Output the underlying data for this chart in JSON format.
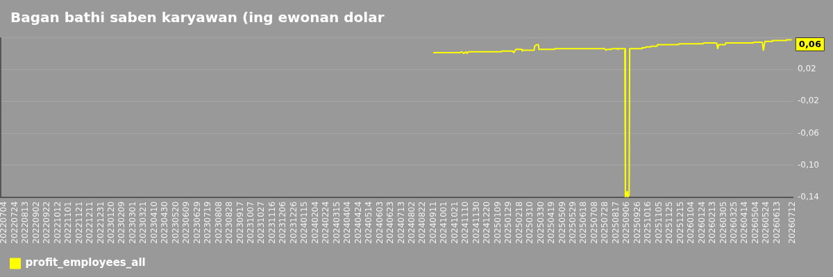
{
  "chart_data": {
    "type": "line",
    "title": "Bagan bathi saben karyawan (ing ewonan dolar",
    "x": [
      "2024-09-11",
      "2024-10-30",
      "2024-11-02",
      "2024-11-06",
      "2024-11-10",
      "2024-11-12",
      "2024-11-15",
      "2025-01-15",
      "2025-01-16",
      "2025-02-05",
      "2025-02-07",
      "2025-02-11",
      "2025-02-22",
      "2025-02-23",
      "2025-02-24",
      "2025-03-17",
      "2025-03-18",
      "2025-03-22",
      "2025-03-25",
      "2025-03-26",
      "2025-04-24",
      "2025-04-25",
      "2025-07-26",
      "2025-07-29",
      "2025-07-31",
      "2025-08-08",
      "2025-08-09",
      "2025-08-19",
      "2025-08-20",
      "2025-08-21",
      "2025-09-02",
      "2025-09-03",
      "2025-09-06",
      "2025-09-07",
      "2025-09-10",
      "2025-09-11",
      "2025-10-03",
      "2025-10-04",
      "2025-10-10",
      "2025-10-11",
      "2025-10-20",
      "2025-10-21",
      "2025-11-01",
      "2025-11-02",
      "2025-12-11",
      "2025-12-12",
      "2026-01-25",
      "2026-01-27",
      "2026-02-20",
      "2026-02-22",
      "2026-02-24",
      "2026-03-08",
      "2026-03-09",
      "2026-04-29",
      "2026-04-30",
      "2026-05-16",
      "2026-05-18",
      "2026-05-21",
      "2026-06-03",
      "2026-06-04",
      "2026-06-29",
      "2026-06-30",
      "2026-07-09"
    ],
    "series": [
      {
        "name": "profit_employees_all",
        "color": "#ffff00",
        "values": [
          0.041,
          0.041,
          0.042,
          0.04,
          0.042,
          0.04,
          0.042,
          0.042,
          0.043,
          0.043,
          0.041,
          0.045,
          0.045,
          0.043,
          0.044,
          0.044,
          0.049,
          0.051,
          0.051,
          0.045,
          0.045,
          0.046,
          0.046,
          0.044,
          0.045,
          0.045,
          0.046,
          0.046,
          0.045,
          0.046,
          0.046,
          -0.14,
          -0.133,
          -0.14,
          -0.137,
          0.046,
          0.046,
          0.047,
          0.047,
          0.048,
          0.048,
          0.049,
          0.049,
          0.051,
          0.051,
          0.052,
          0.052,
          0.053,
          0.053,
          0.046,
          0.051,
          0.051,
          0.053,
          0.053,
          0.054,
          0.054,
          0.044,
          0.055,
          0.055,
          0.056,
          0.056,
          0.057,
          0.057
        ],
        "value_labels": [
          null,
          null,
          null,
          null,
          null,
          null,
          null,
          null,
          null,
          null,
          null,
          null,
          null,
          null,
          null,
          null,
          null,
          null,
          null,
          null,
          null,
          null,
          null,
          null,
          null,
          null,
          null,
          null,
          null,
          null,
          null,
          null,
          null,
          null,
          null,
          null,
          null,
          null,
          null,
          null,
          null,
          null,
          null,
          null,
          null,
          null,
          null,
          null,
          null,
          null,
          null,
          null,
          null,
          null,
          null,
          null,
          null,
          null,
          null,
          null,
          null,
          null,
          "0,06"
        ]
      }
    ],
    "xlim": [
      "2022-06-26",
      "2026-07-13"
    ],
    "xticks": [
      {
        "value": "2022-07-04",
        "label": "20220704"
      },
      {
        "value": "2022-07-24",
        "label": "20220724"
      },
      {
        "value": "2022-08-13",
        "label": "20220813"
      },
      {
        "value": "2022-09-02",
        "label": "20220902"
      },
      {
        "value": "2022-09-22",
        "label": "20220922"
      },
      {
        "value": "2022-10-12",
        "label": "20221012"
      },
      {
        "value": "2022-11-01",
        "label": "20221101"
      },
      {
        "value": "2022-11-21",
        "label": "20221121"
      },
      {
        "value": "2022-12-11",
        "label": "20221211"
      },
      {
        "value": "2022-12-31",
        "label": "20221231"
      },
      {
        "value": "2023-01-20",
        "label": "20230120"
      },
      {
        "value": "2023-02-09",
        "label": "20230209"
      },
      {
        "value": "2023-03-01",
        "label": "20230301"
      },
      {
        "value": "2023-03-21",
        "label": "20230321"
      },
      {
        "value": "2023-04-10",
        "label": "20230410"
      },
      {
        "value": "2023-04-30",
        "label": "20230430"
      },
      {
        "value": "2023-05-20",
        "label": "20230520"
      },
      {
        "value": "2023-06-09",
        "label": "20230609"
      },
      {
        "value": "2023-06-29",
        "label": "20230629"
      },
      {
        "value": "2023-07-19",
        "label": "20230719"
      },
      {
        "value": "2023-08-08",
        "label": "20230808"
      },
      {
        "value": "2023-08-28",
        "label": "20230828"
      },
      {
        "value": "2023-09-17",
        "label": "20230917"
      },
      {
        "value": "2023-10-07",
        "label": "20231007"
      },
      {
        "value": "2023-10-27",
        "label": "20231027"
      },
      {
        "value": "2023-11-16",
        "label": "20231116"
      },
      {
        "value": "2023-12-06",
        "label": "20231206"
      },
      {
        "value": "2023-12-26",
        "label": "20231226"
      },
      {
        "value": "2024-01-15",
        "label": "20240115"
      },
      {
        "value": "2024-02-04",
        "label": "20240204"
      },
      {
        "value": "2024-02-24",
        "label": "20240224"
      },
      {
        "value": "2024-03-15",
        "label": "20240315"
      },
      {
        "value": "2024-04-04",
        "label": "20240404"
      },
      {
        "value": "2024-04-24",
        "label": "20240424"
      },
      {
        "value": "2024-05-14",
        "label": "20240514"
      },
      {
        "value": "2024-06-03",
        "label": "20240603"
      },
      {
        "value": "2024-06-23",
        "label": "20240623"
      },
      {
        "value": "2024-07-13",
        "label": "20240713"
      },
      {
        "value": "2024-08-02",
        "label": "20240802"
      },
      {
        "value": "2024-08-22",
        "label": "20240822"
      },
      {
        "value": "2024-09-11",
        "label": "20240911"
      },
      {
        "value": "2024-10-01",
        "label": "20241001"
      },
      {
        "value": "2024-10-21",
        "label": "20241021"
      },
      {
        "value": "2024-11-10",
        "label": "20241110"
      },
      {
        "value": "2024-11-30",
        "label": "20241130"
      },
      {
        "value": "2024-12-20",
        "label": "20241220"
      },
      {
        "value": "2025-01-09",
        "label": "20250109"
      },
      {
        "value": "2025-01-29",
        "label": "20250129"
      },
      {
        "value": "2025-02-18",
        "label": "20250218"
      },
      {
        "value": "2025-03-10",
        "label": "20250310"
      },
      {
        "value": "2025-03-30",
        "label": "20250330"
      },
      {
        "value": "2025-04-19",
        "label": "20250419"
      },
      {
        "value": "2025-05-09",
        "label": "20250509"
      },
      {
        "value": "2025-05-29",
        "label": "20250529"
      },
      {
        "value": "2025-06-18",
        "label": "20250618"
      },
      {
        "value": "2025-07-08",
        "label": "20250708"
      },
      {
        "value": "2025-07-28",
        "label": "20250728"
      },
      {
        "value": "2025-08-17",
        "label": "20250817"
      },
      {
        "value": "2025-09-06",
        "label": "20250906"
      },
      {
        "value": "2025-09-26",
        "label": "20250926"
      },
      {
        "value": "2025-10-16",
        "label": "20251016"
      },
      {
        "value": "2025-11-05",
        "label": "20251105"
      },
      {
        "value": "2025-11-25",
        "label": "20251125"
      },
      {
        "value": "2025-12-15",
        "label": "20251215"
      },
      {
        "value": "2026-01-04",
        "label": "20260104"
      },
      {
        "value": "2026-01-24",
        "label": "20260124"
      },
      {
        "value": "2026-02-13",
        "label": "20260213"
      },
      {
        "value": "2026-03-05",
        "label": "20260305"
      },
      {
        "value": "2026-03-25",
        "label": "20260325"
      },
      {
        "value": "2026-04-14",
        "label": "20260414"
      },
      {
        "value": "2026-05-04",
        "label": "20260504"
      },
      {
        "value": "2026-05-24",
        "label": "20260524"
      },
      {
        "value": "2026-06-13",
        "label": "20260613"
      },
      {
        "value": "2026-07-12",
        "label": "20260712"
      }
    ],
    "ylim": [
      -0.14,
      0.06
    ],
    "yticks": [
      {
        "value": 0.06,
        "label": null
      },
      {
        "value": 0.02,
        "label": "0,02"
      },
      {
        "value": -0.02,
        "label": "-0,02"
      },
      {
        "value": -0.06,
        "label": "-0,06"
      },
      {
        "value": -0.1,
        "label": "-0,10"
      },
      {
        "value": -0.14,
        "label": "-0,14"
      }
    ],
    "grid": "y",
    "legend": "bottom left"
  }
}
